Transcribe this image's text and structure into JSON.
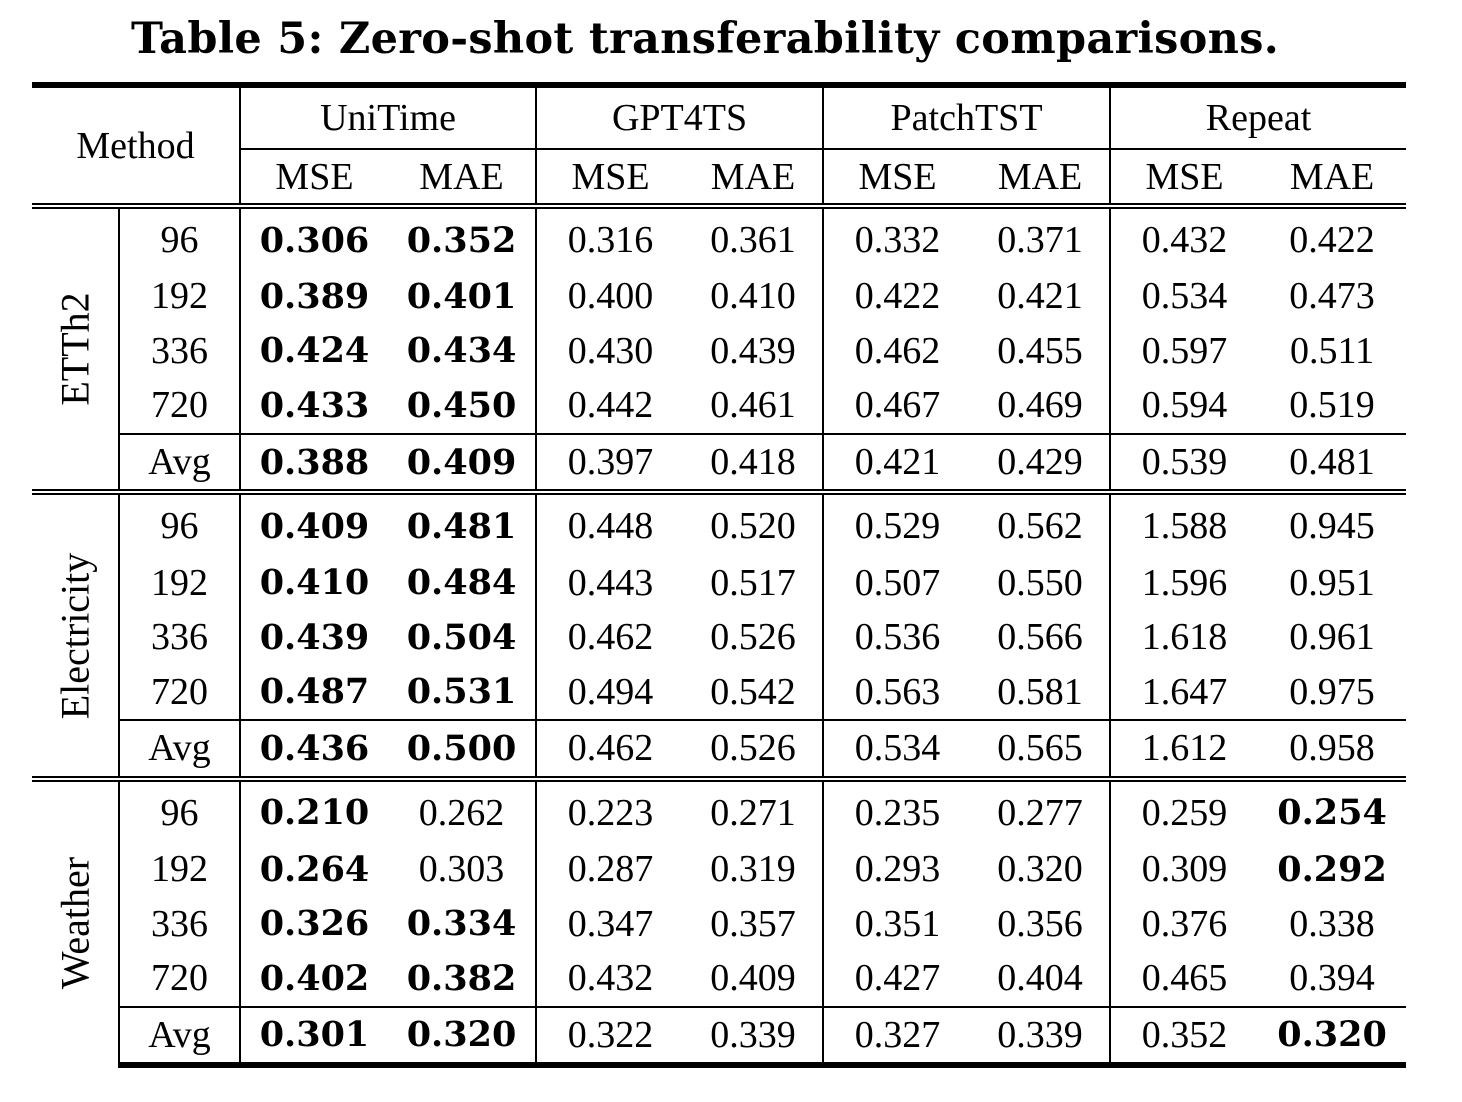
{
  "caption": "Table 5: Zero-shot transferability comparisons.",
  "header": {
    "method": "Method",
    "models": [
      "UniTime",
      "GPT4TS",
      "PatchTST",
      "Repeat"
    ],
    "metrics": [
      "MSE",
      "MAE"
    ]
  },
  "blocks": [
    {
      "dataset": "ETTh2",
      "rows": [
        {
          "horizon": "96",
          "values": [
            "0.306",
            "0.352",
            "0.316",
            "0.361",
            "0.332",
            "0.371",
            "0.432",
            "0.422"
          ],
          "bold": [
            true,
            true,
            false,
            false,
            false,
            false,
            false,
            false
          ]
        },
        {
          "horizon": "192",
          "values": [
            "0.389",
            "0.401",
            "0.400",
            "0.410",
            "0.422",
            "0.421",
            "0.534",
            "0.473"
          ],
          "bold": [
            true,
            true,
            false,
            false,
            false,
            false,
            false,
            false
          ]
        },
        {
          "horizon": "336",
          "values": [
            "0.424",
            "0.434",
            "0.430",
            "0.439",
            "0.462",
            "0.455",
            "0.597",
            "0.511"
          ],
          "bold": [
            true,
            true,
            false,
            false,
            false,
            false,
            false,
            false
          ]
        },
        {
          "horizon": "720",
          "values": [
            "0.433",
            "0.450",
            "0.442",
            "0.461",
            "0.467",
            "0.469",
            "0.594",
            "0.519"
          ],
          "bold": [
            true,
            true,
            false,
            false,
            false,
            false,
            false,
            false
          ]
        },
        {
          "horizon": "Avg",
          "values": [
            "0.388",
            "0.409",
            "0.397",
            "0.418",
            "0.421",
            "0.429",
            "0.539",
            "0.481"
          ],
          "bold": [
            true,
            true,
            false,
            false,
            false,
            false,
            false,
            false
          ]
        }
      ]
    },
    {
      "dataset": "Electricity",
      "rows": [
        {
          "horizon": "96",
          "values": [
            "0.409",
            "0.481",
            "0.448",
            "0.520",
            "0.529",
            "0.562",
            "1.588",
            "0.945"
          ],
          "bold": [
            true,
            true,
            false,
            false,
            false,
            false,
            false,
            false
          ]
        },
        {
          "horizon": "192",
          "values": [
            "0.410",
            "0.484",
            "0.443",
            "0.517",
            "0.507",
            "0.550",
            "1.596",
            "0.951"
          ],
          "bold": [
            true,
            true,
            false,
            false,
            false,
            false,
            false,
            false
          ]
        },
        {
          "horizon": "336",
          "values": [
            "0.439",
            "0.504",
            "0.462",
            "0.526",
            "0.536",
            "0.566",
            "1.618",
            "0.961"
          ],
          "bold": [
            true,
            true,
            false,
            false,
            false,
            false,
            false,
            false
          ]
        },
        {
          "horizon": "720",
          "values": [
            "0.487",
            "0.531",
            "0.494",
            "0.542",
            "0.563",
            "0.581",
            "1.647",
            "0.975"
          ],
          "bold": [
            true,
            true,
            false,
            false,
            false,
            false,
            false,
            false
          ]
        },
        {
          "horizon": "Avg",
          "values": [
            "0.436",
            "0.500",
            "0.462",
            "0.526",
            "0.534",
            "0.565",
            "1.612",
            "0.958"
          ],
          "bold": [
            true,
            true,
            false,
            false,
            false,
            false,
            false,
            false
          ]
        }
      ]
    },
    {
      "dataset": "Weather",
      "rows": [
        {
          "horizon": "96",
          "values": [
            "0.210",
            "0.262",
            "0.223",
            "0.271",
            "0.235",
            "0.277",
            "0.259",
            "0.254"
          ],
          "bold": [
            true,
            false,
            false,
            false,
            false,
            false,
            false,
            true
          ]
        },
        {
          "horizon": "192",
          "values": [
            "0.264",
            "0.303",
            "0.287",
            "0.319",
            "0.293",
            "0.320",
            "0.309",
            "0.292"
          ],
          "bold": [
            true,
            false,
            false,
            false,
            false,
            false,
            false,
            true
          ]
        },
        {
          "horizon": "336",
          "values": [
            "0.326",
            "0.334",
            "0.347",
            "0.357",
            "0.351",
            "0.356",
            "0.376",
            "0.338"
          ],
          "bold": [
            true,
            true,
            false,
            false,
            false,
            false,
            false,
            false
          ]
        },
        {
          "horizon": "720",
          "values": [
            "0.402",
            "0.382",
            "0.432",
            "0.409",
            "0.427",
            "0.404",
            "0.465",
            "0.394"
          ],
          "bold": [
            true,
            true,
            false,
            false,
            false,
            false,
            false,
            false
          ]
        },
        {
          "horizon": "Avg",
          "values": [
            "0.301",
            "0.320",
            "0.322",
            "0.339",
            "0.327",
            "0.339",
            "0.352",
            "0.320"
          ],
          "bold": [
            true,
            true,
            false,
            false,
            false,
            false,
            false,
            true
          ]
        }
      ]
    }
  ]
}
